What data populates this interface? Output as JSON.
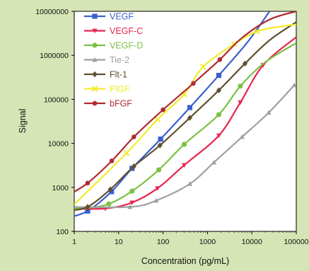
{
  "chart_data": {
    "type": "line",
    "xlabel": "Concentration (pg/mL)",
    "ylabel": "Signal",
    "xscale": "log",
    "yscale": "log",
    "xlim": [
      1,
      100000
    ],
    "ylim": [
      100,
      10000000
    ],
    "x_tick_labels": [
      "1",
      "10",
      "100",
      "1000",
      "10000",
      "100000"
    ],
    "y_tick_labels": [
      "100",
      "1000",
      "10000",
      "100000",
      "1000000",
      "10000000"
    ],
    "legend_position": "top-left",
    "grid": false,
    "series": [
      {
        "name": "VEGF",
        "color": "#3a5fcd",
        "marker": "square",
        "x": [
          0.8,
          2,
          6.9,
          20,
          88,
          400,
          1800,
          8000,
          25000
        ],
        "y": [
          210,
          290,
          800,
          2700,
          12500,
          65000,
          350000,
          2000000,
          10000000
        ],
        "marker_x": [
          2,
          6.9,
          20,
          88,
          400,
          1800
        ]
      },
      {
        "name": "VEGF-C",
        "color": "#e8264f",
        "marker": "triangle-down",
        "x": [
          0.8,
          5,
          20,
          75,
          300,
          1800,
          5500,
          18000,
          100000
        ],
        "y": [
          330,
          330,
          450,
          950,
          3200,
          15000,
          85000,
          600000,
          2600000
        ],
        "marker_x": [
          5,
          20,
          75,
          300,
          1800,
          5500,
          18000
        ]
      },
      {
        "name": "VEGF-D",
        "color": "#7cc143",
        "marker": "circle",
        "x": [
          0.8,
          2,
          6,
          20,
          80,
          300,
          1800,
          5500,
          20000,
          100000
        ],
        "y": [
          330,
          340,
          420,
          820,
          2500,
          9500,
          45000,
          200000,
          700000,
          1900000
        ],
        "marker_x": [
          6,
          20,
          80,
          300,
          1800,
          5500
        ]
      },
      {
        "name": "Tie-2",
        "color": "#a0a0a0",
        "marker": "triangle-up",
        "x": [
          0.8,
          18,
          70,
          400,
          1400,
          6000,
          24000,
          90000
        ],
        "y": [
          360,
          360,
          500,
          1200,
          3700,
          14000,
          50000,
          210000
        ],
        "marker_x": [
          18,
          70,
          400,
          1400,
          6000,
          24000,
          90000
        ]
      },
      {
        "name": "Flt-1",
        "color": "#5f5130",
        "marker": "diamond",
        "x": [
          0.8,
          2,
          6.5,
          22,
          85,
          400,
          1800,
          7000,
          25000,
          100000
        ],
        "y": [
          300,
          360,
          900,
          3000,
          9000,
          38000,
          160000,
          650000,
          2200000,
          5700000
        ],
        "marker_x": [
          2,
          6.5,
          22,
          85,
          400,
          1800,
          7000
        ]
      },
      {
        "name": "PlGF",
        "color": "#f0ec2a",
        "marker": "cross",
        "x": [
          0.8,
          15,
          75,
          300,
          800,
          4000,
          13000,
          50000,
          100000
        ],
        "y": [
          330,
          6000,
          35000,
          130000,
          550000,
          1800000,
          3500000,
          4600000,
          5000000
        ],
        "marker_x": [
          15,
          75,
          300,
          800,
          4000,
          13000
        ]
      },
      {
        "name": "bFGF",
        "color": "#b02a30",
        "marker": "hexagon",
        "x": [
          0.8,
          2,
          7,
          22,
          100,
          480,
          1900,
          6000,
          25000,
          100000
        ],
        "y": [
          700,
          1250,
          4000,
          14000,
          58000,
          230000,
          800000,
          2500000,
          6500000,
          10000000
        ],
        "marker_x": [
          2,
          7,
          22,
          100,
          480,
          1900
        ]
      }
    ]
  }
}
